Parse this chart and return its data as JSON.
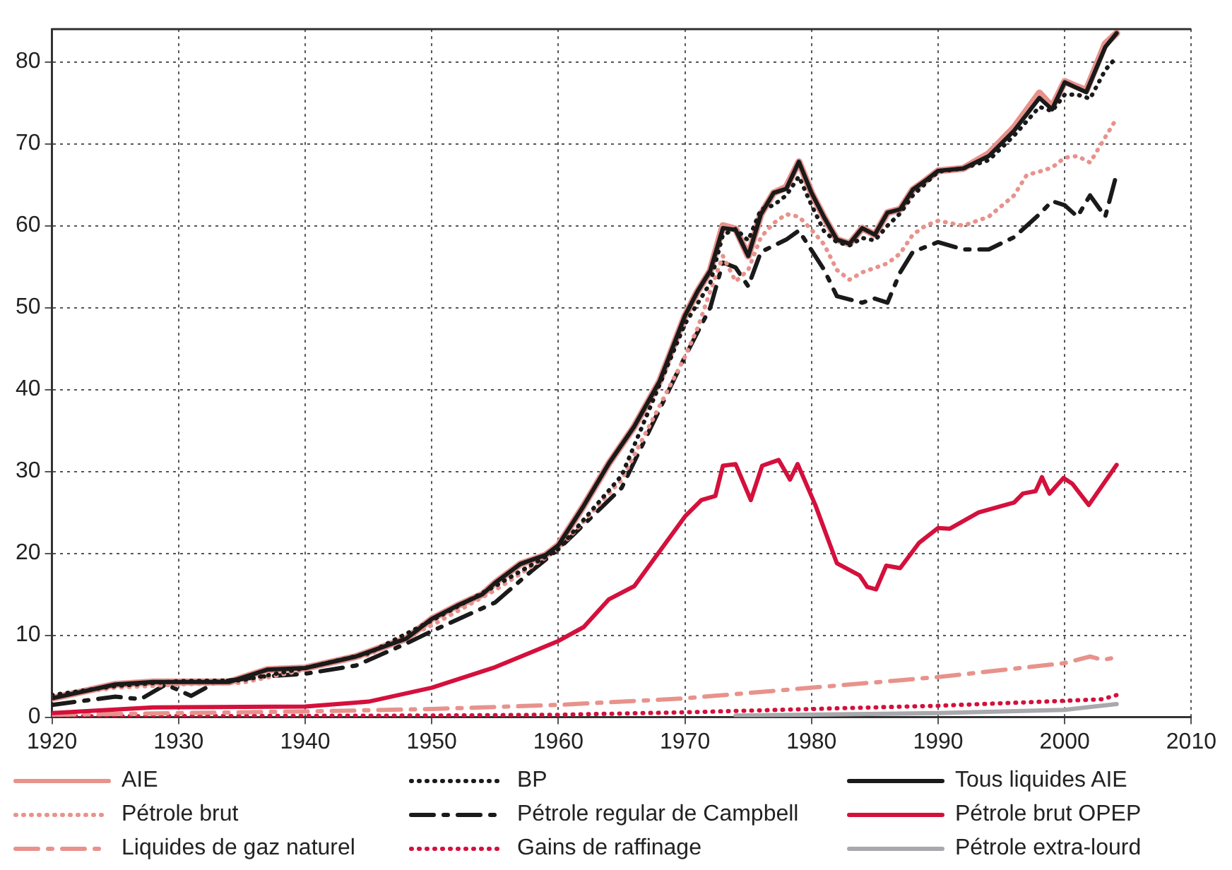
{
  "chart_data": {
    "type": "line",
    "xlim": [
      1920,
      2010
    ],
    "xticks": [
      1920,
      1930,
      1940,
      1950,
      1960,
      1970,
      1980,
      1990,
      2000,
      2010
    ],
    "ylim": [
      0,
      84
    ],
    "yticks": [
      0,
      10,
      20,
      30,
      40,
      50,
      60,
      70,
      80
    ],
    "grid": true,
    "legend": "bottom",
    "series": [
      {
        "name": "AIE",
        "color": "#e8928c",
        "line_style": "solid",
        "x": [
          1920,
          1925,
          1928,
          1930,
          1934,
          1937,
          1940,
          1944,
          1948,
          1950,
          1952,
          1954,
          1955,
          1957,
          1959,
          1960,
          1962,
          1964,
          1966,
          1968,
          1970,
          1971,
          1972,
          1973,
          1974,
          1975,
          1976,
          1977,
          1978,
          1979,
          1980,
          1981,
          1982,
          1983,
          1984,
          1985,
          1986,
          1987,
          1988,
          1989,
          1990,
          1992,
          1994,
          1996,
          1998,
          1999,
          2000,
          2001.7,
          2003.2,
          2004.1
        ],
        "values": [
          2.3,
          4,
          4.3,
          4.3,
          4.3,
          5.8,
          6,
          7.4,
          9.6,
          12,
          13.6,
          15,
          16.4,
          18.7,
          19.8,
          21,
          25.8,
          31,
          35.5,
          41,
          49,
          52,
          54.5,
          60,
          59.6,
          56.3,
          61.4,
          64,
          64.7,
          67.8,
          64,
          61,
          58.3,
          57.8,
          59.7,
          58.9,
          61.6,
          62,
          64.4,
          65.5,
          66.7,
          67,
          68.8,
          72,
          76.2,
          74.5,
          77.6,
          76.5,
          82.2,
          83.5
        ]
      },
      {
        "name": "BP",
        "color": "#1a1a1a",
        "line_style": "dotted",
        "x": [
          1920,
          1925,
          1930,
          1935,
          1940,
          1945,
          1950,
          1955,
          1960,
          1965,
          1970,
          1971,
          1972,
          1973,
          1974,
          1975,
          1976,
          1977,
          1978,
          1979,
          1980,
          1981,
          1982,
          1983,
          1984,
          1985,
          1986,
          1987,
          1988,
          1990,
          1992,
          1994,
          1996,
          1998,
          1999,
          2000,
          2001,
          2002,
          2003.2,
          2004.1
        ],
        "values": [
          2.7,
          3.8,
          4.4,
          4.5,
          6,
          7.8,
          11.8,
          16,
          20.5,
          29.5,
          48,
          50.5,
          53,
          58.9,
          59.6,
          58.2,
          62,
          62.5,
          63.7,
          66,
          62.5,
          59.3,
          58,
          57.6,
          58.5,
          58.2,
          60,
          61.5,
          63.7,
          66.6,
          67,
          68,
          71,
          74.5,
          74,
          76,
          76,
          75.5,
          79,
          80.6
        ]
      },
      {
        "name": "Tous liquides AIE",
        "color": "#1a1a1a",
        "line_style": "solid",
        "x": [
          1920,
          1925,
          1928,
          1930,
          1934,
          1937,
          1940,
          1944,
          1948,
          1950,
          1952,
          1954,
          1955,
          1957,
          1959,
          1960,
          1962,
          1964,
          1966,
          1968,
          1970,
          1971,
          1972,
          1973,
          1974,
          1975,
          1976,
          1977,
          1978,
          1979,
          1980,
          1981,
          1982,
          1983,
          1984,
          1985,
          1986,
          1987,
          1988,
          1989,
          1990,
          1992,
          1994,
          1996,
          1998,
          1999,
          2000,
          2001.7,
          2003.2,
          2004.1
        ],
        "values": [
          2.3,
          4,
          4.3,
          4.3,
          4.3,
          5.8,
          6,
          7.4,
          9.6,
          12,
          13.6,
          15,
          16.4,
          18.7,
          19.8,
          21,
          25.8,
          31,
          35.5,
          41,
          49,
          52,
          54.5,
          59.7,
          59.5,
          56.3,
          61.4,
          64,
          64.5,
          67.8,
          64,
          61,
          58.3,
          57.8,
          59.7,
          58.9,
          61.6,
          62,
          64.4,
          65.5,
          66.7,
          67,
          68.5,
          71.6,
          75.6,
          74.2,
          77.5,
          76.3,
          81.8,
          83.5
        ]
      },
      {
        "name": "Pétrole brut",
        "color": "#e8928c",
        "line_style": "dotted",
        "x": [
          1920,
          1925,
          1930,
          1935,
          1940,
          1945,
          1950,
          1955,
          1960,
          1965,
          1970,
          1971,
          1972,
          1973,
          1974,
          1975,
          1976,
          1977,
          1978,
          1979,
          1980,
          1981,
          1982,
          1983,
          1984,
          1986,
          1987,
          1988,
          1989,
          1990,
          1992,
          1994,
          1996,
          1997,
          1998,
          1999,
          2000,
          2001,
          2002,
          2003.2,
          2004.1
        ],
        "values": [
          2.5,
          3.6,
          4,
          4.2,
          5.8,
          7.6,
          11.2,
          15.5,
          20.5,
          29,
          44,
          47.5,
          52,
          56.3,
          53.2,
          54.6,
          58.6,
          60.3,
          61.4,
          61.1,
          59.5,
          57.7,
          54.6,
          53.4,
          54.3,
          55.4,
          56.6,
          58.9,
          60,
          60.6,
          60,
          61.1,
          63.7,
          66.2,
          66.6,
          67.1,
          68.3,
          68.5,
          67.7,
          70.8,
          73.1
        ]
      },
      {
        "name": "Pétrole regular de Campbell",
        "color": "#1a1a1a",
        "line_style": "dashdot",
        "x": [
          1920,
          1925,
          1927,
          1929,
          1931,
          1933,
          1937,
          1940,
          1944,
          1948,
          1950,
          1955,
          1958,
          1960,
          1965,
          1970,
          1972,
          1973,
          1974,
          1975,
          1976,
          1978,
          1979,
          1981,
          1982,
          1984,
          1985,
          1986,
          1987,
          1988,
          1990,
          1992,
          1994,
          1996,
          1998,
          1999,
          2000,
          2001,
          2002,
          2003.2,
          2004.1
        ],
        "values": [
          1.5,
          2.5,
          2.2,
          4,
          2.6,
          4.3,
          5,
          5.3,
          6.3,
          9,
          10.5,
          14,
          18,
          20.5,
          28,
          44,
          50,
          55.5,
          54.9,
          52.6,
          56.8,
          58.3,
          59.4,
          54.6,
          51.4,
          50.6,
          51.1,
          50.6,
          54.3,
          56.8,
          58,
          57.1,
          57.1,
          58.6,
          61.4,
          63,
          62.5,
          61.1,
          63.7,
          61.1,
          66.3
        ]
      },
      {
        "name": "Pétrole brut OPEP",
        "color": "#d4103c",
        "line_style": "solid",
        "x": [
          1920,
          1928,
          1940,
          1945,
          1950,
          1955,
          1960,
          1962,
          1964,
          1966,
          1970,
          1971.3,
          1972.4,
          1973,
          1974,
          1975.2,
          1976.1,
          1977.4,
          1978.3,
          1978.9,
          1980.3,
          1982,
          1983.8,
          1984.4,
          1985.1,
          1985.9,
          1987,
          1988.5,
          1990,
          1990.9,
          1993.2,
          1996,
          1996.7,
          1997.7,
          1998.2,
          1998.8,
          1999.9,
          2000.6,
          2001.9,
          2004.1
        ],
        "values": [
          0.5,
          1.2,
          1.3,
          1.9,
          3.6,
          6.1,
          9.3,
          11,
          14.4,
          16,
          24.5,
          26.5,
          27,
          30.7,
          30.9,
          26.5,
          30.7,
          31.4,
          29,
          30.9,
          25.9,
          18.8,
          17.3,
          15.9,
          15.6,
          18.5,
          18.2,
          21.3,
          23.1,
          23,
          25,
          26.2,
          27.3,
          27.6,
          29.3,
          27.3,
          29.2,
          28.5,
          25.9,
          30.8
        ]
      },
      {
        "name": "Liquides de gaz naturel",
        "color": "#e8928c",
        "line_style": "dashdot",
        "x": [
          1920,
          1930,
          1940,
          1950,
          1960,
          1970,
          1980,
          1990,
          2000,
          2002,
          2003,
          2004.1
        ],
        "values": [
          0.3,
          0.5,
          0.7,
          1,
          1.5,
          2.3,
          3.6,
          4.9,
          6.6,
          7.4,
          7,
          7.3
        ]
      },
      {
        "name": "Gains de raffinage",
        "color": "#d4103c",
        "line_style": "dotted",
        "x": [
          1920,
          1950,
          1960,
          1970,
          1980,
          1990,
          2000,
          2003,
          2004.1
        ],
        "values": [
          0.1,
          0.2,
          0.3,
          0.6,
          1,
          1.4,
          2,
          2.2,
          2.7
        ]
      },
      {
        "name": "Pétrole extra-lourd",
        "color": "#a8a8ad",
        "line_style": "solid",
        "x": [
          1974,
          1990,
          2000,
          2004.1
        ],
        "values": [
          0.2,
          0.5,
          0.9,
          1.6
        ]
      }
    ]
  }
}
